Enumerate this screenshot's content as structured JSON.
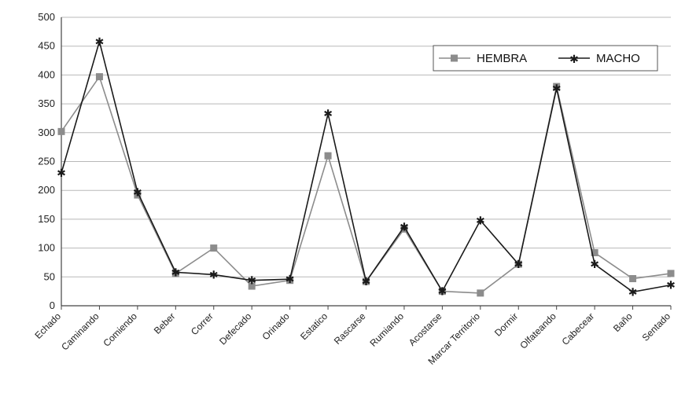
{
  "chart_data": {
    "type": "line",
    "title": "",
    "xlabel": "",
    "ylabel": "",
    "ylim": [
      0,
      500
    ],
    "yticks": [
      0,
      50,
      100,
      150,
      200,
      250,
      300,
      350,
      400,
      450,
      500
    ],
    "grid": true,
    "legend_position": "top-right",
    "categories": [
      "Echado",
      "Caminando",
      "Comiendo",
      "Beber",
      "Correr",
      "Defecado",
      "Orinado",
      "Estatico",
      "Rascarse",
      "Rumiando",
      "Acostarse",
      "Marcar Territorio",
      "Dormir",
      "Olfateando",
      "Cabecear",
      "Baño",
      "Sentado"
    ],
    "series": [
      {
        "name": "HEMBRA",
        "color": "#8c8c8c",
        "marker": "square",
        "values": [
          302,
          397,
          192,
          56,
          100,
          34,
          44,
          260,
          42,
          133,
          25,
          22,
          72,
          380,
          92,
          47,
          56
        ]
      },
      {
        "name": "MACHO",
        "color": "#1a1a1a",
        "marker": "star",
        "values": [
          230,
          458,
          197,
          58,
          54,
          44,
          46,
          333,
          42,
          137,
          25,
          148,
          72,
          377,
          72,
          24,
          36
        ]
      }
    ]
  }
}
